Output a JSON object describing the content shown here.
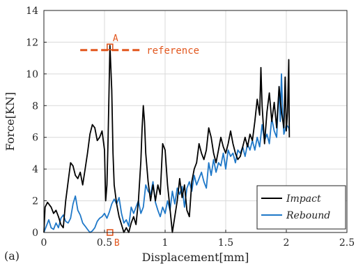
{
  "chart_data": {
    "type": "line",
    "panel_label": "(a)",
    "xlabel": "Displacement[mm]",
    "ylabel": "Force[KN]",
    "xlim": [
      0,
      2.5
    ],
    "ylim": [
      0,
      14
    ],
    "xticks": [
      "0",
      "0.5",
      "1",
      "1.5",
      "2",
      "2.5"
    ],
    "yticks": [
      "0",
      "2",
      "4",
      "6",
      "8",
      "10",
      "12",
      "14"
    ],
    "xtick_values": [
      0,
      0.5,
      1,
      1.5,
      2,
      2.5
    ],
    "ytick_values": [
      0,
      2,
      4,
      6,
      8,
      10,
      12,
      14
    ],
    "grid": true,
    "legend_position": "bottom-right",
    "series": [
      {
        "name": "Impact",
        "color": "#000000",
        "points": [
          [
            0.0,
            0.0
          ],
          [
            0.01,
            1.6
          ],
          [
            0.03,
            1.9
          ],
          [
            0.06,
            1.6
          ],
          [
            0.08,
            1.2
          ],
          [
            0.1,
            1.4
          ],
          [
            0.12,
            1.0
          ],
          [
            0.14,
            0.5
          ],
          [
            0.16,
            0.3
          ],
          [
            0.18,
            2.0
          ],
          [
            0.2,
            3.2
          ],
          [
            0.22,
            4.4
          ],
          [
            0.24,
            4.2
          ],
          [
            0.26,
            3.6
          ],
          [
            0.28,
            3.4
          ],
          [
            0.3,
            3.8
          ],
          [
            0.32,
            3.0
          ],
          [
            0.34,
            4.0
          ],
          [
            0.36,
            5.0
          ],
          [
            0.38,
            6.2
          ],
          [
            0.4,
            6.8
          ],
          [
            0.42,
            6.6
          ],
          [
            0.44,
            5.8
          ],
          [
            0.46,
            6.0
          ],
          [
            0.48,
            6.4
          ],
          [
            0.5,
            5.2
          ],
          [
            0.51,
            2.0
          ],
          [
            0.52,
            3.0
          ],
          [
            0.53,
            6.0
          ],
          [
            0.545,
            11.8
          ],
          [
            0.56,
            9.0
          ],
          [
            0.57,
            5.0
          ],
          [
            0.58,
            3.0
          ],
          [
            0.6,
            1.8
          ],
          [
            0.62,
            1.0
          ],
          [
            0.64,
            0.5
          ],
          [
            0.66,
            0.0
          ],
          [
            0.68,
            0.3
          ],
          [
            0.7,
            0.0
          ],
          [
            0.72,
            0.6
          ],
          [
            0.74,
            1.0
          ],
          [
            0.76,
            0.5
          ],
          [
            0.78,
            2.0
          ],
          [
            0.8,
            4.5
          ],
          [
            0.81,
            6.5
          ],
          [
            0.82,
            8.0
          ],
          [
            0.83,
            7.0
          ],
          [
            0.84,
            5.0
          ],
          [
            0.86,
            3.2
          ],
          [
            0.88,
            2.0
          ],
          [
            0.9,
            3.0
          ],
          [
            0.92,
            2.0
          ],
          [
            0.94,
            3.0
          ],
          [
            0.96,
            2.4
          ],
          [
            0.98,
            5.6
          ],
          [
            1.0,
            5.2
          ],
          [
            1.02,
            3.0
          ],
          [
            1.04,
            1.5
          ],
          [
            1.06,
            0.0
          ],
          [
            1.08,
            1.0
          ],
          [
            1.1,
            2.0
          ],
          [
            1.12,
            3.4
          ],
          [
            1.14,
            2.2
          ],
          [
            1.16,
            3.0
          ],
          [
            1.18,
            1.4
          ],
          [
            1.2,
            1.0
          ],
          [
            1.22,
            3.2
          ],
          [
            1.24,
            4.0
          ],
          [
            1.26,
            4.4
          ],
          [
            1.28,
            5.6
          ],
          [
            1.3,
            5.0
          ],
          [
            1.32,
            4.6
          ],
          [
            1.34,
            5.2
          ],
          [
            1.36,
            6.6
          ],
          [
            1.38,
            6.0
          ],
          [
            1.4,
            5.0
          ],
          [
            1.42,
            4.4
          ],
          [
            1.44,
            5.2
          ],
          [
            1.46,
            6.0
          ],
          [
            1.48,
            5.4
          ],
          [
            1.5,
            5.0
          ],
          [
            1.52,
            5.6
          ],
          [
            1.54,
            6.4
          ],
          [
            1.56,
            5.6
          ],
          [
            1.58,
            5.0
          ],
          [
            1.6,
            4.6
          ],
          [
            1.62,
            4.8
          ],
          [
            1.64,
            5.4
          ],
          [
            1.66,
            6.0
          ],
          [
            1.68,
            5.4
          ],
          [
            1.7,
            6.2
          ],
          [
            1.72,
            5.8
          ],
          [
            1.74,
            7.0
          ],
          [
            1.76,
            8.4
          ],
          [
            1.78,
            7.4
          ],
          [
            1.79,
            10.4
          ],
          [
            1.8,
            8.0
          ],
          [
            1.82,
            5.6
          ],
          [
            1.84,
            7.6
          ],
          [
            1.86,
            8.8
          ],
          [
            1.88,
            7.0
          ],
          [
            1.9,
            8.2
          ],
          [
            1.92,
            6.6
          ],
          [
            1.94,
            9.2
          ],
          [
            1.96,
            7.6
          ],
          [
            1.98,
            6.6
          ],
          [
            1.99,
            9.8
          ],
          [
            2.0,
            6.4
          ],
          [
            2.01,
            7.6
          ],
          [
            2.02,
            10.9
          ],
          [
            2.025,
            6.0
          ]
        ]
      },
      {
        "name": "Rebound",
        "color": "#1f78c8",
        "points": [
          [
            0.0,
            0.0
          ],
          [
            0.02,
            0.4
          ],
          [
            0.04,
            0.8
          ],
          [
            0.06,
            0.3
          ],
          [
            0.08,
            0.2
          ],
          [
            0.1,
            0.6
          ],
          [
            0.12,
            0.3
          ],
          [
            0.14,
            0.9
          ],
          [
            0.16,
            1.1
          ],
          [
            0.18,
            0.7
          ],
          [
            0.2,
            0.6
          ],
          [
            0.22,
            0.9
          ],
          [
            0.24,
            1.8
          ],
          [
            0.26,
            2.3
          ],
          [
            0.28,
            1.4
          ],
          [
            0.3,
            1.1
          ],
          [
            0.32,
            0.6
          ],
          [
            0.34,
            0.4
          ],
          [
            0.36,
            0.2
          ],
          [
            0.38,
            0.0
          ],
          [
            0.4,
            0.1
          ],
          [
            0.42,
            0.3
          ],
          [
            0.44,
            0.7
          ],
          [
            0.46,
            0.9
          ],
          [
            0.48,
            1.0
          ],
          [
            0.5,
            1.2
          ],
          [
            0.52,
            0.9
          ],
          [
            0.54,
            1.3
          ],
          [
            0.56,
            1.8
          ],
          [
            0.58,
            2.1
          ],
          [
            0.6,
            1.8
          ],
          [
            0.62,
            2.2
          ],
          [
            0.64,
            1.2
          ],
          [
            0.66,
            0.6
          ],
          [
            0.68,
            0.8
          ],
          [
            0.7,
            0.4
          ],
          [
            0.72,
            1.6
          ],
          [
            0.74,
            1.2
          ],
          [
            0.76,
            1.6
          ],
          [
            0.78,
            2.0
          ],
          [
            0.8,
            1.2
          ],
          [
            0.82,
            1.6
          ],
          [
            0.84,
            3.0
          ],
          [
            0.86,
            2.6
          ],
          [
            0.88,
            2.4
          ],
          [
            0.9,
            3.2
          ],
          [
            0.92,
            1.9
          ],
          [
            0.94,
            1.4
          ],
          [
            0.96,
            1.0
          ],
          [
            0.98,
            1.6
          ],
          [
            1.0,
            1.2
          ],
          [
            1.02,
            2.0
          ],
          [
            1.04,
            1.4
          ],
          [
            1.06,
            2.6
          ],
          [
            1.08,
            1.8
          ],
          [
            1.1,
            2.8
          ],
          [
            1.12,
            2.4
          ],
          [
            1.14,
            2.9
          ],
          [
            1.16,
            1.6
          ],
          [
            1.18,
            2.8
          ],
          [
            1.2,
            3.2
          ],
          [
            1.22,
            2.6
          ],
          [
            1.24,
            3.6
          ],
          [
            1.26,
            3.0
          ],
          [
            1.28,
            3.4
          ],
          [
            1.3,
            3.8
          ],
          [
            1.32,
            3.2
          ],
          [
            1.34,
            2.8
          ],
          [
            1.36,
            4.4
          ],
          [
            1.38,
            3.6
          ],
          [
            1.4,
            4.6
          ],
          [
            1.42,
            3.8
          ],
          [
            1.44,
            4.4
          ],
          [
            1.46,
            4.2
          ],
          [
            1.48,
            5.0
          ],
          [
            1.5,
            4.0
          ],
          [
            1.52,
            5.2
          ],
          [
            1.54,
            4.8
          ],
          [
            1.56,
            5.0
          ],
          [
            1.58,
            4.4
          ],
          [
            1.6,
            5.2
          ],
          [
            1.62,
            5.0
          ],
          [
            1.64,
            5.4
          ],
          [
            1.66,
            4.8
          ],
          [
            1.68,
            5.6
          ],
          [
            1.7,
            5.2
          ],
          [
            1.72,
            5.8
          ],
          [
            1.74,
            5.2
          ],
          [
            1.76,
            6.0
          ],
          [
            1.78,
            5.4
          ],
          [
            1.8,
            6.8
          ],
          [
            1.82,
            5.8
          ],
          [
            1.84,
            6.2
          ],
          [
            1.86,
            5.6
          ],
          [
            1.88,
            7.2
          ],
          [
            1.9,
            6.4
          ],
          [
            1.92,
            6.0
          ],
          [
            1.94,
            9.2
          ],
          [
            1.95,
            7.0
          ],
          [
            1.96,
            10.0
          ],
          [
            1.97,
            7.4
          ],
          [
            1.98,
            6.2
          ],
          [
            2.0,
            6.8
          ],
          [
            2.02,
            6.6
          ],
          [
            2.025,
            6.4
          ]
        ]
      }
    ],
    "annotations": {
      "reference_label": "reference",
      "reference_y": 11.5,
      "reference_x": [
        0.3,
        0.8
      ],
      "reference_color": "#e2571e",
      "point_a": {
        "label": "A",
        "x": 0.545,
        "y": 11.7
      },
      "point_b": {
        "label": "B",
        "x": 0.545,
        "y": 0.0
      }
    }
  }
}
